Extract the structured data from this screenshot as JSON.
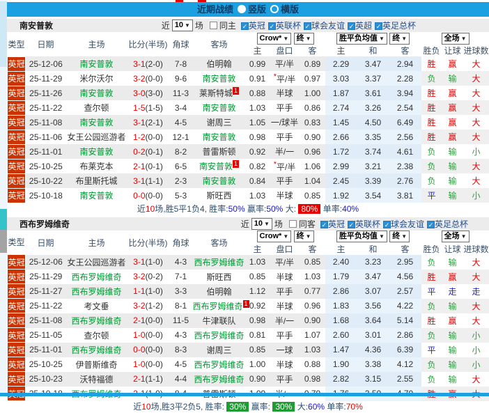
{
  "icons": {
    "check": "✓",
    "caret": "▼",
    "star": "*"
  },
  "titlebar": {
    "title": "近期战绩",
    "option_vertical": "竖版",
    "option_horizontal": "横版"
  },
  "labels": {
    "near": "近",
    "rounds_suffix": "场"
  },
  "dropdowns": {
    "company": "Crow*",
    "final": "终",
    "avg": "胜平负均值",
    "scope": "全场"
  },
  "columns": {
    "type": "类型",
    "date": "日期",
    "home": "主场",
    "score": "比分(半场)",
    "corner": "角球",
    "away": "客场",
    "odds_home": "主",
    "odds_line": "盘口",
    "odds_away": "客",
    "avg_home": "主",
    "avg_draw": "和",
    "avg_away": "客",
    "result_wl": "胜负",
    "result_handicap": "让球",
    "result_goals": "进球数"
  },
  "sections": [
    {
      "team": "南安普敦",
      "rounds": "10",
      "same_label": "同主",
      "leagues": [
        "英冠",
        "英联杯",
        "球会友谊",
        "英超",
        "英足总杯"
      ],
      "rows": [
        {
          "type": "英冠",
          "date": "25-12-06",
          "home": "南安普敦",
          "hg": true,
          "hb": "",
          "score": "3-1",
          "half": "(2-0)",
          "corner": "7-8",
          "away": "伯明翰",
          "ag": false,
          "ab": "",
          "oh": "0.99",
          "line": "平/半",
          "star": false,
          "oa": "0.89",
          "ah": "2.29",
          "ad": "3.47",
          "aa": "2.94",
          "wl": [
            "胜",
            "red"
          ],
          "hc": [
            "赢",
            "red"
          ],
          "gl": [
            "大",
            "red"
          ]
        },
        {
          "type": "英冠",
          "date": "25-11-29",
          "home": "米尔沃尔",
          "hg": false,
          "hb": "",
          "score": "3-2",
          "half": "(0-0)",
          "corner": "9-6",
          "away": "南安普敦",
          "ag": true,
          "ab": "",
          "oh": "0.91",
          "line": "平/半",
          "star": true,
          "oa": "0.97",
          "ah": "3.03",
          "ad": "3.37",
          "aa": "2.28",
          "wl": [
            "负",
            "green"
          ],
          "hc": [
            "输",
            "green"
          ],
          "gl": [
            "大",
            "red"
          ]
        },
        {
          "type": "英冠",
          "date": "25-11-26",
          "home": "南安普敦",
          "hg": true,
          "hb": "",
          "score": "3-0",
          "half": "(3-0)",
          "corner": "11-3",
          "away": "莱斯特城",
          "ag": false,
          "ab": "1",
          "oh": "0.88",
          "line": "半球",
          "star": false,
          "oa": "1.00",
          "ah": "1.87",
          "ad": "3.61",
          "aa": "3.94",
          "wl": [
            "胜",
            "red"
          ],
          "hc": [
            "赢",
            "red"
          ],
          "gl": [
            "大",
            "red"
          ]
        },
        {
          "type": "英冠",
          "date": "25-11-22",
          "home": "查尔顿",
          "hg": false,
          "hb": "",
          "score": "1-5",
          "half": "(1-5)",
          "corner": "3-4",
          "away": "南安普敦",
          "ag": true,
          "ab": "",
          "oh": "1.03",
          "line": "平手",
          "star": false,
          "oa": "0.86",
          "ah": "2.74",
          "ad": "3.26",
          "aa": "2.54",
          "wl": [
            "胜",
            "red"
          ],
          "hc": [
            "赢",
            "red"
          ],
          "gl": [
            "大",
            "red"
          ]
        },
        {
          "type": "英冠",
          "date": "25-11-08",
          "home": "南安普敦",
          "hg": true,
          "hb": "",
          "score": "3-1",
          "half": "(2-1)",
          "corner": "4-5",
          "away": "谢周三",
          "ag": false,
          "ab": "",
          "oh": "1.05",
          "line": "一/球半",
          "star": false,
          "oa": "0.83",
          "ah": "1.45",
          "ad": "4.50",
          "aa": "6.49",
          "wl": [
            "胜",
            "red"
          ],
          "hc": [
            "赢",
            "red"
          ],
          "gl": [
            "大",
            "red"
          ]
        },
        {
          "type": "英冠",
          "date": "25-11-06",
          "home": "女王公园巡游者",
          "hg": false,
          "hb": "",
          "score": "1-2",
          "half": "(0-0)",
          "corner": "12-1",
          "away": "南安普敦",
          "ag": true,
          "ab": "",
          "oh": "0.98",
          "line": "平手",
          "star": false,
          "oa": "0.90",
          "ah": "2.66",
          "ad": "3.35",
          "aa": "2.56",
          "wl": [
            "胜",
            "red"
          ],
          "hc": [
            "赢",
            "red"
          ],
          "gl": [
            "大",
            "red"
          ]
        },
        {
          "type": "英冠",
          "date": "25-11-01",
          "home": "南安普敦",
          "hg": true,
          "hb": "",
          "score": "0-2",
          "half": "(0-1)",
          "corner": "8-2",
          "away": "普雷斯顿",
          "ag": false,
          "ab": "",
          "oh": "0.92",
          "line": "半/一",
          "star": false,
          "oa": "0.96",
          "ah": "1.72",
          "ad": "3.74",
          "aa": "4.61",
          "wl": [
            "负",
            "green"
          ],
          "hc": [
            "输",
            "green"
          ],
          "gl": [
            "小",
            "green"
          ]
        },
        {
          "type": "英冠",
          "date": "25-10-25",
          "home": "布莱克本",
          "hg": false,
          "hb": "",
          "score": "2-1",
          "half": "(0-1)",
          "corner": "6-5",
          "away": "南安普敦",
          "ag": true,
          "ab": "1",
          "oh": "0.82",
          "line": "平/半",
          "star": true,
          "oa": "1.06",
          "ah": "2.99",
          "ad": "3.21",
          "aa": "2.38",
          "wl": [
            "负",
            "green"
          ],
          "hc": [
            "输",
            "green"
          ],
          "gl": [
            "大",
            "red"
          ]
        },
        {
          "type": "英冠",
          "date": "25-10-22",
          "home": "布里斯托城",
          "hg": false,
          "hb": "",
          "score": "3-1",
          "half": "(1-1)",
          "corner": "2-3",
          "away": "南安普敦",
          "ag": true,
          "ab": "",
          "oh": "0.84",
          "line": "平手",
          "star": false,
          "oa": "1.04",
          "ah": "2.45",
          "ad": "3.39",
          "aa": "2.76",
          "wl": [
            "负",
            "green"
          ],
          "hc": [
            "输",
            "green"
          ],
          "gl": [
            "大",
            "red"
          ]
        },
        {
          "type": "英冠",
          "date": "25-10-18",
          "home": "南安普敦",
          "hg": true,
          "hb": "",
          "score": "0-0",
          "half": "(0-0)",
          "corner": "5-3",
          "away": "斯旺西",
          "ag": false,
          "ab": "",
          "oh": "1.03",
          "line": "半球",
          "star": false,
          "oa": "0.85",
          "ah": "1.92",
          "ad": "3.54",
          "aa": "3.81",
          "wl": [
            "平",
            "blue"
          ],
          "hc": [
            "输",
            "green"
          ],
          "gl": [
            "小",
            "green"
          ]
        }
      ],
      "summary": [
        {
          "t": "近",
          "s": "p"
        },
        {
          "t": "10",
          "s": "r"
        },
        {
          "t": "场,胜5平1负4, 胜率:",
          "s": "p"
        },
        {
          "t": "50%",
          "s": "b"
        },
        {
          "t": " 赢率:",
          "s": "p"
        },
        {
          "t": "50%",
          "s": "b"
        },
        {
          "t": " 大: ",
          "s": "p"
        },
        {
          "t": "80%",
          "s": "rb"
        },
        {
          "t": " 单率:",
          "s": "p"
        },
        {
          "t": "40%",
          "s": "b"
        }
      ]
    },
    {
      "team": "西布罗姆维奇",
      "rounds": "10",
      "same_label": "同客",
      "leagues": [
        "英冠",
        "英联杯",
        "球会友谊",
        "英足总杯"
      ],
      "rows": [
        {
          "type": "英冠",
          "date": "25-12-06",
          "home": "女王公园巡游者",
          "hg": false,
          "hb": "",
          "score": "3-1",
          "half": "(1-0)",
          "corner": "4-3",
          "away": "西布罗姆维奇",
          "ag": true,
          "ab": "",
          "oh": "1.03",
          "line": "平/半",
          "star": false,
          "oa": "0.85",
          "ah": "2.40",
          "ad": "3.23",
          "aa": "2.95",
          "wl": [
            "负",
            "green"
          ],
          "hc": [
            "输",
            "green"
          ],
          "gl": [
            "大",
            "red"
          ]
        },
        {
          "type": "英冠",
          "date": "25-11-29",
          "home": "西布罗姆维奇",
          "hg": true,
          "hb": "",
          "score": "3-2",
          "half": "(0-2)",
          "corner": "7-1",
          "away": "斯旺西",
          "ag": false,
          "ab": "",
          "oh": "0.85",
          "line": "半球",
          "star": false,
          "oa": "1.03",
          "ah": "1.79",
          "ad": "3.47",
          "aa": "4.56",
          "wl": [
            "胜",
            "red"
          ],
          "hc": [
            "赢",
            "red"
          ],
          "gl": [
            "大",
            "red"
          ]
        },
        {
          "type": "英冠",
          "date": "25-11-27",
          "home": "西布罗姆维奇",
          "hg": true,
          "hb": "",
          "score": "1-1",
          "half": "(1-0)",
          "corner": "3-3",
          "away": "伯明翰",
          "ag": false,
          "ab": "",
          "oh": "1.12",
          "line": "平手",
          "star": false,
          "oa": "0.77",
          "ah": "2.86",
          "ad": "3.07",
          "aa": "2.57",
          "wl": [
            "平",
            "blue"
          ],
          "hc": [
            "走",
            "blue"
          ],
          "gl": [
            "走",
            "blue"
          ]
        },
        {
          "type": "英冠",
          "date": "25-11-22",
          "home": "考文垂",
          "hg": false,
          "hb": "",
          "score": "3-2",
          "half": "(1-2)",
          "corner": "8-1",
          "away": "西布罗姆维奇",
          "ag": true,
          "ab": "1",
          "oh": "0.92",
          "line": "半球",
          "star": false,
          "oa": "0.96",
          "ah": "1.83",
          "ad": "3.56",
          "aa": "4.22",
          "wl": [
            "负",
            "green"
          ],
          "hc": [
            "输",
            "green"
          ],
          "gl": [
            "大",
            "red"
          ]
        },
        {
          "type": "英冠",
          "date": "25-11-08",
          "home": "西布罗姆维奇",
          "hg": true,
          "hb": "",
          "score": "2-1",
          "half": "(0-0)",
          "corner": "11-5",
          "away": "牛津联队",
          "ag": false,
          "ab": "",
          "oh": "0.98",
          "line": "半/一",
          "star": false,
          "oa": "0.90",
          "ah": "1.68",
          "ad": "3.64",
          "aa": "5.14",
          "wl": [
            "胜",
            "red"
          ],
          "hc": [
            "赢",
            "red"
          ],
          "gl": [
            "大",
            "red"
          ]
        },
        {
          "type": "英冠",
          "date": "25-11-05",
          "home": "查尔顿",
          "hg": false,
          "hb": "",
          "score": "1-0",
          "half": "(0-0)",
          "corner": "4-3",
          "away": "西布罗姆维奇",
          "ag": true,
          "ab": "",
          "oh": "0.81",
          "line": "平手",
          "star": false,
          "oa": "1.07",
          "ah": "2.60",
          "ad": "3.01",
          "aa": "2.86",
          "wl": [
            "负",
            "green"
          ],
          "hc": [
            "输",
            "green"
          ],
          "gl": [
            "小",
            "green"
          ]
        },
        {
          "type": "英冠",
          "date": "25-11-01",
          "home": "西布罗姆维奇",
          "hg": true,
          "hb": "",
          "score": "0-0",
          "half": "(0-0)",
          "corner": "8-3",
          "away": "谢周三",
          "ag": false,
          "ab": "",
          "oh": "0.85",
          "line": "一球",
          "star": false,
          "oa": "1.03",
          "ah": "1.47",
          "ad": "4.36",
          "aa": "6.39",
          "wl": [
            "平",
            "blue"
          ],
          "hc": [
            "输",
            "green"
          ],
          "gl": [
            "小",
            "green"
          ]
        },
        {
          "type": "英冠",
          "date": "25-10-25",
          "home": "伊普斯维奇",
          "hg": false,
          "hb": "",
          "score": "1-0",
          "half": "(0-0)",
          "corner": "4-5",
          "away": "西布罗姆维奇",
          "ag": true,
          "ab": "",
          "oh": "1.00",
          "line": "半球",
          "star": false,
          "oa": "0.88",
          "ah": "1.90",
          "ad": "3.38",
          "aa": "4.12",
          "wl": [
            "负",
            "green"
          ],
          "hc": [
            "输",
            "green"
          ],
          "gl": [
            "小",
            "green"
          ]
        },
        {
          "type": "英冠",
          "date": "25-10-23",
          "home": "沃特福德",
          "hg": false,
          "hb": "",
          "score": "2-1",
          "half": "(1-1)",
          "corner": "4-4",
          "away": "西布罗姆维奇",
          "ag": true,
          "ab": "",
          "oh": "0.90",
          "line": "平手",
          "star": false,
          "oa": "0.98",
          "ah": "2.82",
          "ad": "3.15",
          "aa": "2.55",
          "wl": [
            "负",
            "green"
          ],
          "hc": [
            "输",
            "green"
          ],
          "gl": [
            "大",
            "red"
          ]
        },
        {
          "type": "英冠",
          "date": "25-10-18",
          "home": "西布罗姆维奇",
          "hg": true,
          "hb": "",
          "score": "2-1",
          "half": "(1-0)",
          "corner": "8-4",
          "away": "普雷斯顿",
          "ag": false,
          "ab": "",
          "oh": "1.09",
          "line": "半/一",
          "star": false,
          "oa": "0.79",
          "ah": "1.76",
          "ad": "3.50",
          "aa": "4.70",
          "wl": [
            "胜",
            "red"
          ],
          "hc": [
            "赢",
            "red"
          ],
          "gl": [
            "大",
            "red"
          ]
        }
      ],
      "summary": [
        {
          "t": "近",
          "s": "p"
        },
        {
          "t": "10",
          "s": "r"
        },
        {
          "t": "场,胜3平2负5, 胜率: ",
          "s": "p"
        },
        {
          "t": "30%",
          "s": "gb"
        },
        {
          "t": " 赢率: ",
          "s": "p"
        },
        {
          "t": "30%",
          "s": "gb"
        },
        {
          "t": " 大:",
          "s": "p"
        },
        {
          "t": "60%",
          "s": "b"
        },
        {
          "t": " 单率:",
          "s": "p"
        },
        {
          "t": "70%",
          "s": "r"
        }
      ]
    }
  ]
}
